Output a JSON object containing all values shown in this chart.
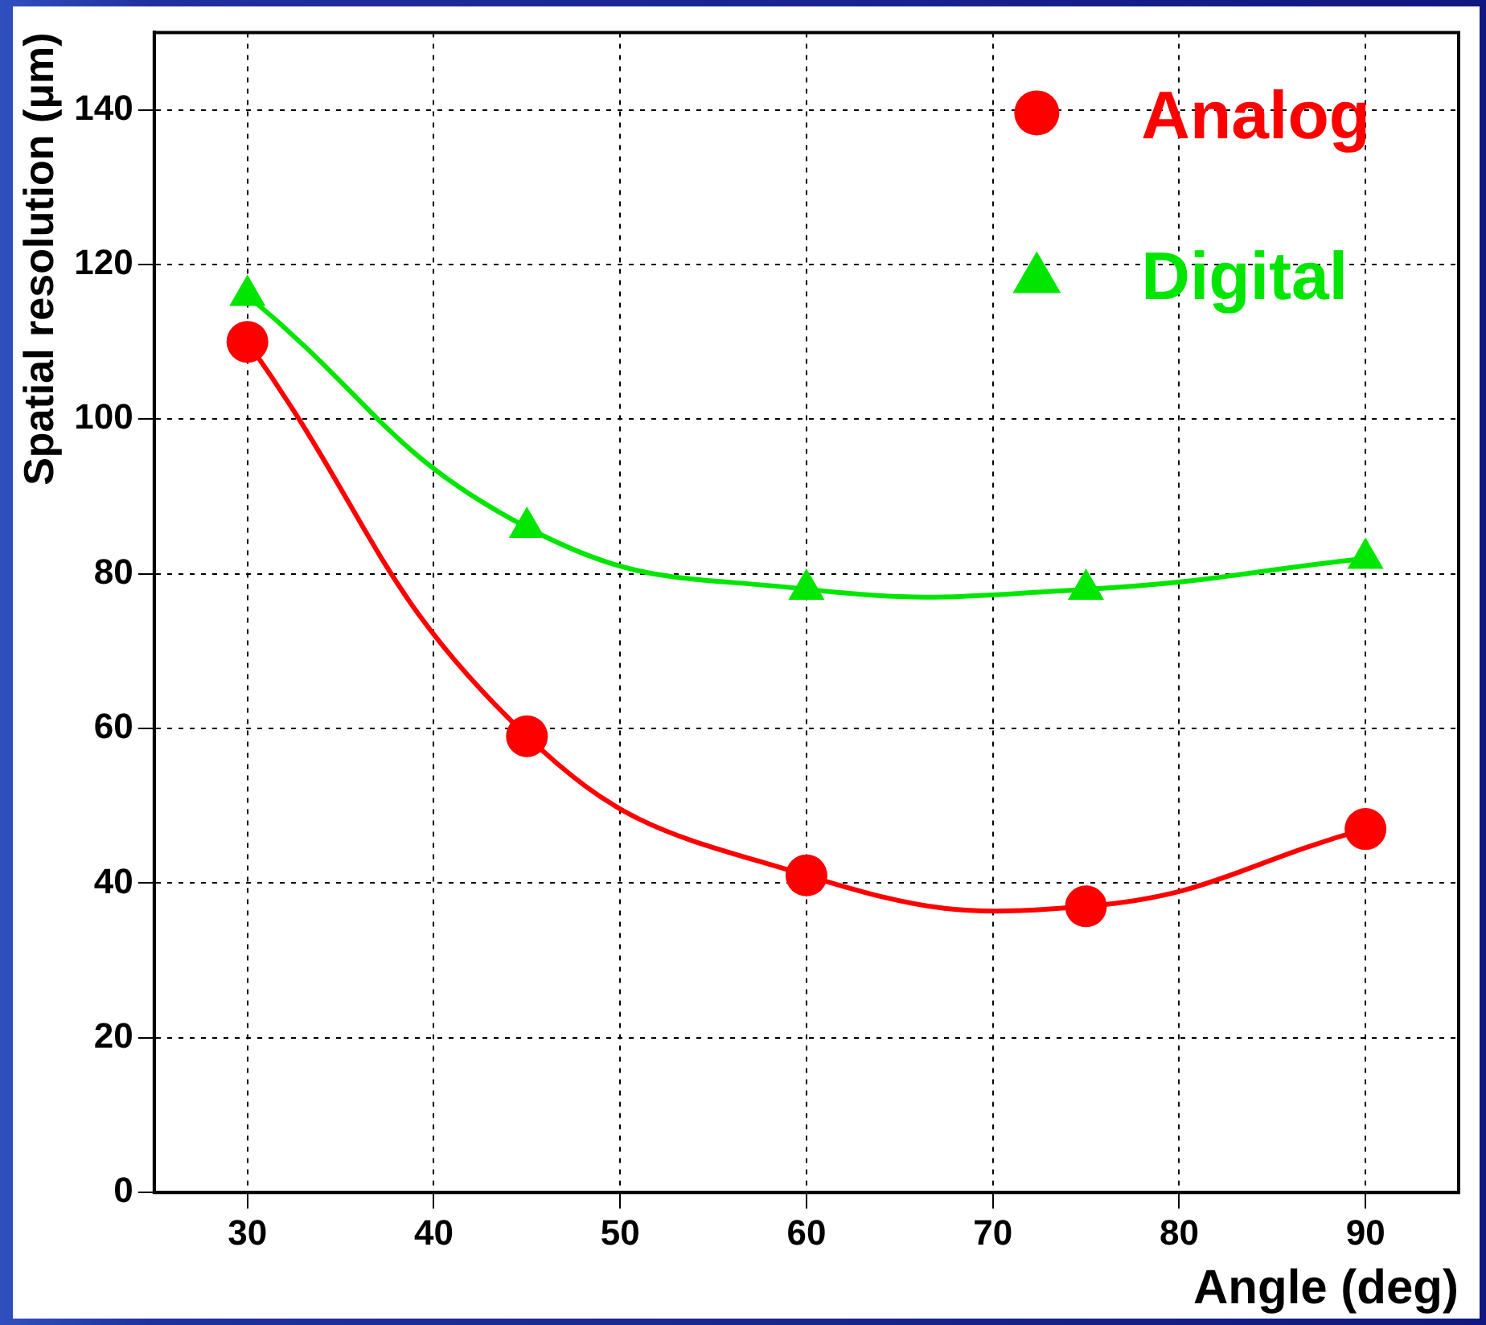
{
  "chart_data": {
    "type": "line",
    "xlabel": "Angle (deg)",
    "ylabel": "Spatial resolution (μm)",
    "x": [
      30,
      45,
      60,
      75,
      90
    ],
    "series": [
      {
        "name": "Analog",
        "color": "#ff0000",
        "marker": "circle",
        "values": [
          110,
          59,
          41,
          37,
          47
        ]
      },
      {
        "name": "Digital",
        "color": "#00e600",
        "marker": "triangle",
        "values": [
          116,
          86,
          78,
          78,
          82
        ]
      }
    ],
    "xlim": [
      25,
      95
    ],
    "xticks": [
      30,
      40,
      50,
      60,
      70,
      80,
      90
    ],
    "ylim": [
      0,
      150
    ],
    "yticks": [
      0,
      20,
      40,
      60,
      80,
      100,
      120,
      140
    ],
    "grid": true,
    "legend": "top right",
    "line_style": "solid"
  }
}
